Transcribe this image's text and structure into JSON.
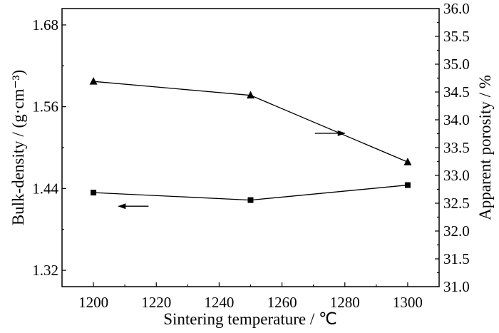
{
  "chart_data": {
    "type": "line",
    "title": "",
    "xlabel": "Sintering temperature / ℃",
    "ylabel_left": "Bulk-density / (g·cm⁻³)",
    "ylabel_right": "Apparent porosity / %",
    "xlim": [
      1190,
      1310
    ],
    "ylim_left": [
      1.296,
      1.704
    ],
    "ylim_right": [
      31.0,
      36.0
    ],
    "x_ticks": [
      "1200",
      "1220",
      "1240",
      "1260",
      "1280",
      "1300"
    ],
    "y_left_ticks": [
      "1.32",
      "1.44",
      "1.56",
      "1.68"
    ],
    "y_right_ticks": [
      "31.0",
      "31.5",
      "32.0",
      "32.5",
      "33.0",
      "33.5",
      "34.0",
      "34.5",
      "35.0",
      "35.5",
      "36.0"
    ],
    "series": [
      {
        "axis": "left",
        "marker": "square",
        "x": [
          1200,
          1250,
          1300
        ],
        "values": [
          1.434,
          1.423,
          1.445
        ]
      },
      {
        "axis": "right",
        "marker": "triangle",
        "x": [
          1200,
          1250,
          1300
        ],
        "values": [
          34.69,
          34.44,
          33.24
        ]
      }
    ],
    "annotations": [
      {
        "type": "arrow",
        "direction": "left",
        "x": 1208,
        "y_left": 1.414
      },
      {
        "type": "arrow",
        "direction": "right",
        "x": 1280,
        "y_left": 1.521
      }
    ],
    "grid": false,
    "legend": "none"
  }
}
